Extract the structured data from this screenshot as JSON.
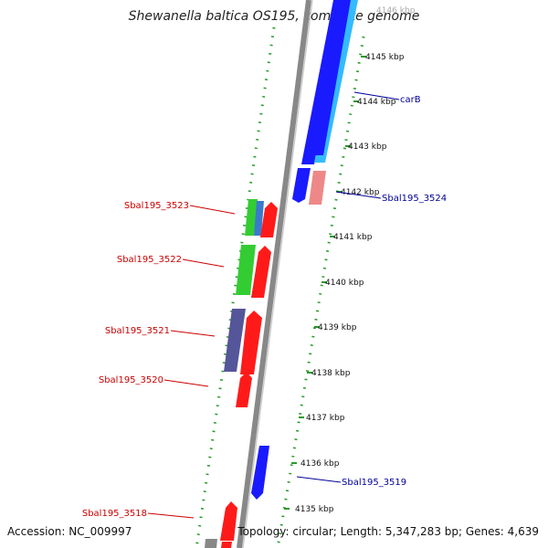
{
  "title": "Shewanella baltica OS195, complete genome",
  "accession": "Accession: NC_009997",
  "topology": "Topology: circular; Length: 5,347,283 bp; Genes: 4,639",
  "colors": {
    "backbone": "#888888",
    "dotted_ring": "#2a9a2a",
    "label_red": "#cc0000",
    "label_blue": "#00009a",
    "gene_red": "#ff1a1a",
    "gene_blue": "#1a1aff",
    "gene_lightblue": "#33bbff",
    "gene_green": "#33cc33",
    "gene_purple": "#555599",
    "gene_pink": "#ee8888"
  },
  "ticks": [
    "4146 kbp",
    "4145 kbp",
    "4144 kbp",
    "4143 kbp",
    "4142 kbp",
    "4141 kbp",
    "4140 kbp",
    "4139 kbp",
    "4138 kbp",
    "4137 kbp",
    "4136 kbp",
    "4135 kbp"
  ],
  "labels_left": [
    "Sbal195_3523",
    "Sbal195_3522",
    "Sbal195_3521",
    "Sbal195_3520",
    "Sbal195_3518"
  ],
  "labels_right": [
    "carB",
    "Sbal195_3524",
    "Sbal195_3519"
  ]
}
